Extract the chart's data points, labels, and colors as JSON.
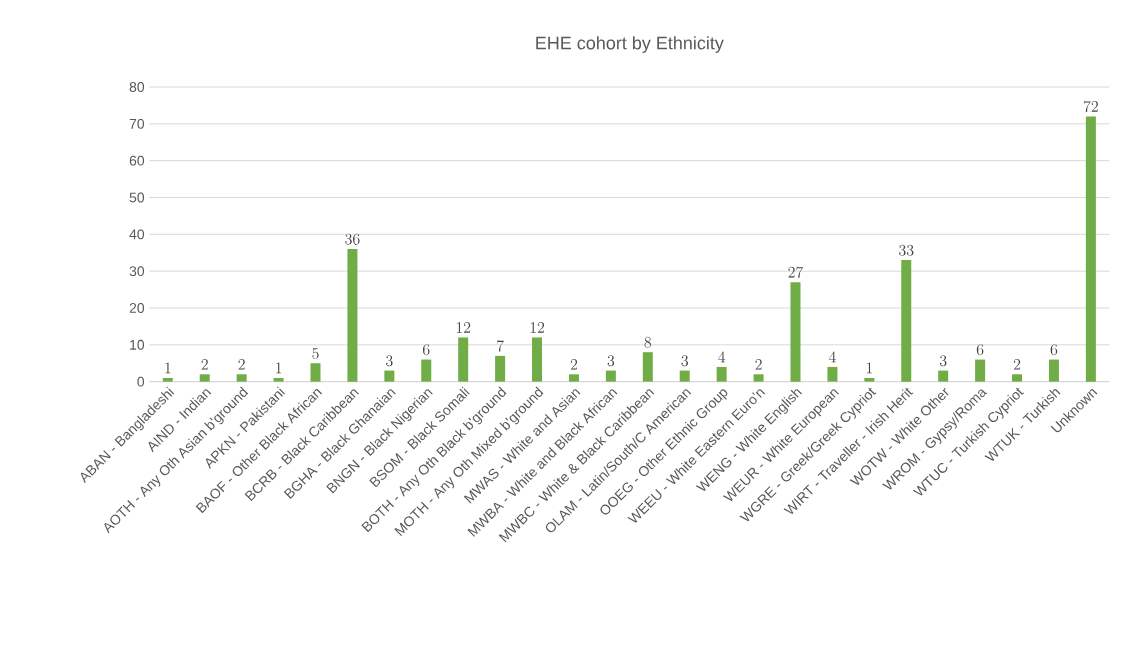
{
  "chart_data": {
    "type": "bar",
    "title": "EHE cohort by Ethnicity",
    "categories": [
      "ABAN - Bangladeshi",
      "AIND - Indian",
      "AOTH - Any Oth Asian b'ground",
      "APKN - Pakistani",
      "BAOF - Other Black African",
      "BCRB - Black Caribbean",
      "BGHA - Black Ghanaian",
      "BNGN - Black Nigerian",
      "BSOM - Black Somali",
      "BOTH - Any Oth Black b'ground",
      "MOTH - Any Oth Mixed b'ground",
      "MWAS - White and Asian",
      "MWBA - White and Black African",
      "MWBC - White & Black Caribbean",
      "OLAM - Latin/South/C American",
      "OOEG - Other Ethnic Group",
      "WEEU - White Eastern Euro'n",
      "WENG - White English",
      "WEUR - White European",
      "WGRE - Greek/Greek Cypriot",
      "WIRT - Traveller - Irish Herit",
      "WOTW - White Other",
      "WROM - Gypsy/Roma",
      "WTUC - Turkish Cypriot",
      "WTUK - Turkish",
      "Unknown"
    ],
    "values": [
      1,
      2,
      2,
      1,
      5,
      36,
      3,
      6,
      12,
      7,
      12,
      2,
      3,
      8,
      3,
      4,
      2,
      27,
      4,
      1,
      33,
      3,
      6,
      2,
      6,
      72
    ],
    "color": "#70ad47",
    "ylim": [
      0,
      80
    ],
    "yticks": [
      0,
      10,
      20,
      30,
      40,
      50,
      60,
      70,
      80
    ],
    "grid": "y",
    "data_labels": true
  }
}
